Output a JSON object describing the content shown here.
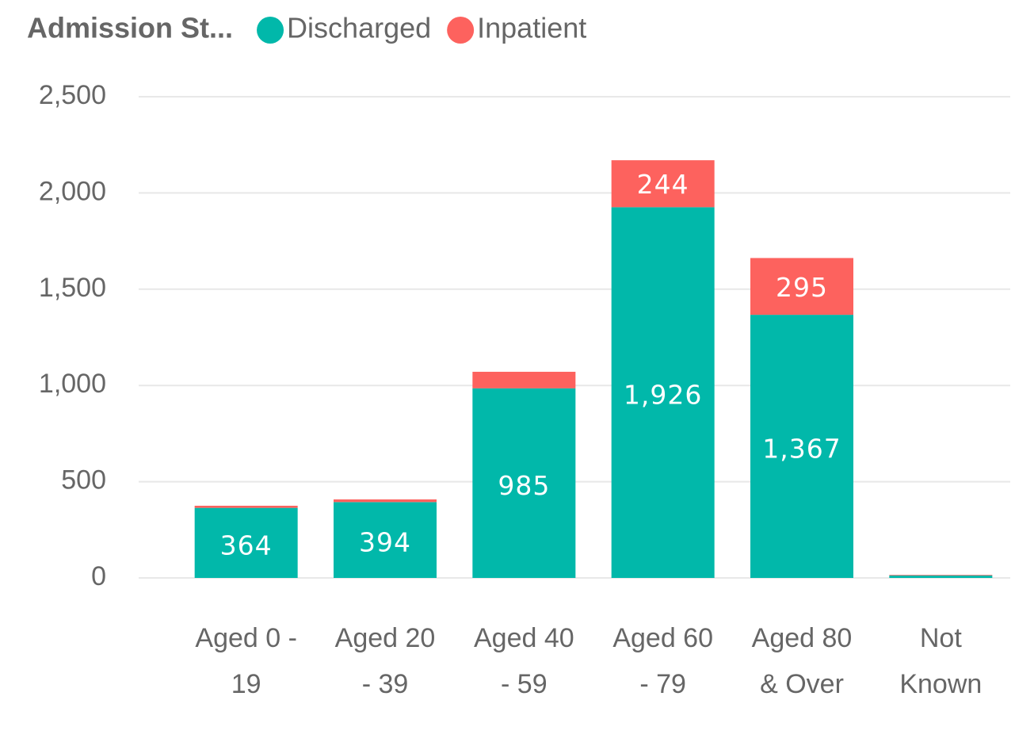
{
  "chart_data": {
    "type": "stacked_bar",
    "legend_title": "Admission St...",
    "categories": [
      "Aged 0 - 19",
      "Aged 20 - 39",
      "Aged 40 - 59",
      "Aged 60 - 79",
      "Aged 80 & Over",
      "Not Known"
    ],
    "series": [
      {
        "name": "Discharged",
        "color": "#01B8AA",
        "values": [
          364,
          394,
          985,
          1926,
          1367,
          13
        ],
        "value_labels": [
          "364",
          "394",
          "985",
          "1,926",
          "1,367",
          null
        ]
      },
      {
        "name": "Inpatient",
        "color": "#FD625E",
        "values": [
          11,
          14,
          86,
          244,
          295,
          3
        ],
        "value_labels": [
          null,
          null,
          null,
          "244",
          "295",
          null
        ]
      }
    ],
    "ylim": [
      0,
      2500
    ],
    "yticks": [
      0,
      500,
      {
        "value": 1000,
        "label": "1,000"
      },
      {
        "value": 1500,
        "label": "1,500"
      },
      {
        "value": 2000,
        "label": "2,000"
      },
      {
        "value": 2500,
        "label": "2,500"
      }
    ],
    "grid": true,
    "legend": "top"
  }
}
